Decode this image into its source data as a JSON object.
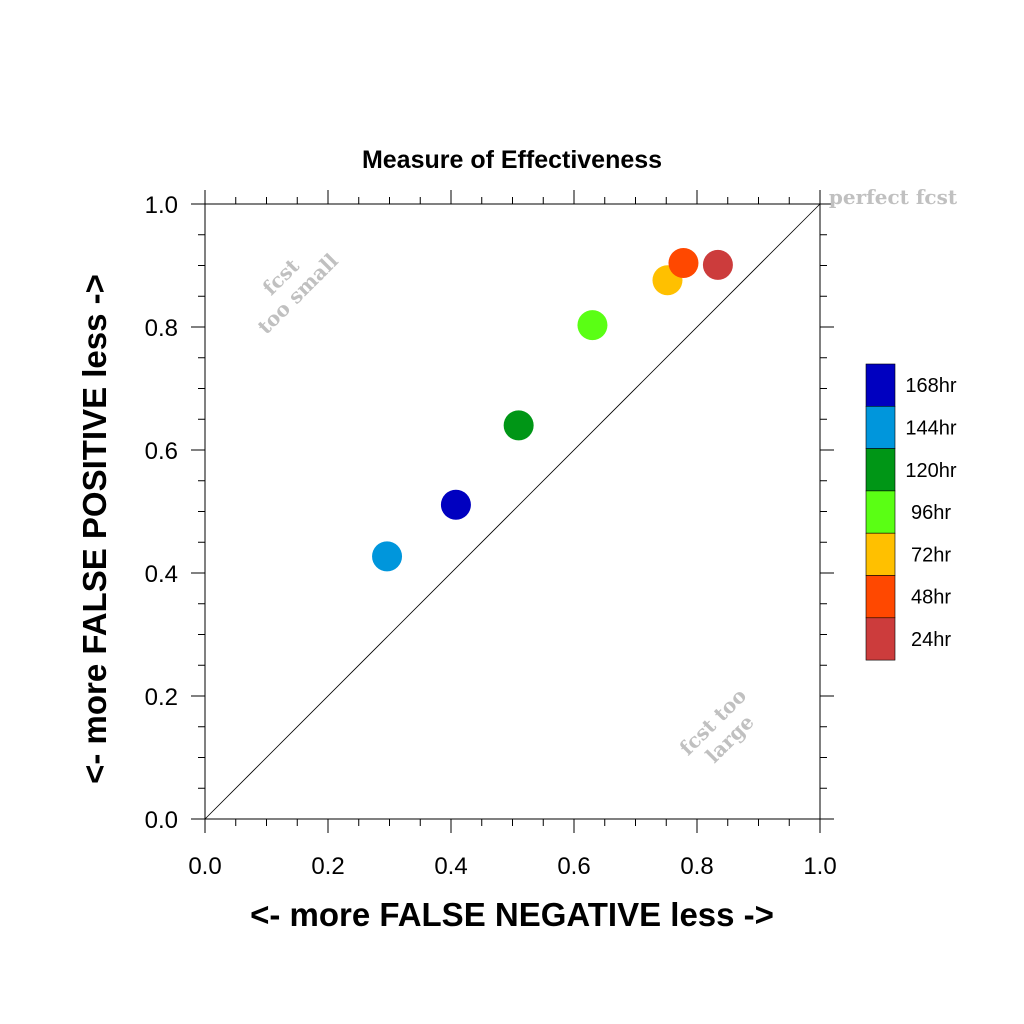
{
  "chart_data": {
    "type": "scatter",
    "title": "Measure of Effectiveness",
    "xlabel": "<- more   FALSE NEGATIVE   less ->",
    "ylabel": "<- more   FALSE POSITIVE   less ->",
    "xlim": [
      0.0,
      1.0
    ],
    "ylim": [
      0.0,
      1.0
    ],
    "x_ticks": [
      "0.0",
      "0.2",
      "0.4",
      "0.6",
      "0.8",
      "1.0"
    ],
    "y_ticks": [
      "0.0",
      "0.2",
      "0.4",
      "0.6",
      "0.8",
      "1.0"
    ],
    "grid": false,
    "legend_position": "right",
    "annotations": {
      "perfect": "perfect fcst",
      "too_small_1": "fcst",
      "too_small_2": "too small",
      "too_large_1": "fcst too",
      "too_large_2": "large"
    },
    "series": [
      {
        "name": "168hr",
        "color": "#0000c0",
        "x": 0.408,
        "y": 0.511
      },
      {
        "name": "144hr",
        "color": "#0096dc",
        "x": 0.296,
        "y": 0.427
      },
      {
        "name": "120hr",
        "color": "#009616",
        "x": 0.51,
        "y": 0.64
      },
      {
        "name": "96hr",
        "color": "#5aff14",
        "x": 0.63,
        "y": 0.803
      },
      {
        "name": "72hr",
        "color": "#ffc000",
        "x": 0.752,
        "y": 0.876
      },
      {
        "name": "48hr",
        "color": "#ff4800",
        "x": 0.778,
        "y": 0.904
      },
      {
        "name": "24hr",
        "color": "#cc3c3c",
        "x": 0.834,
        "y": 0.901
      }
    ]
  }
}
